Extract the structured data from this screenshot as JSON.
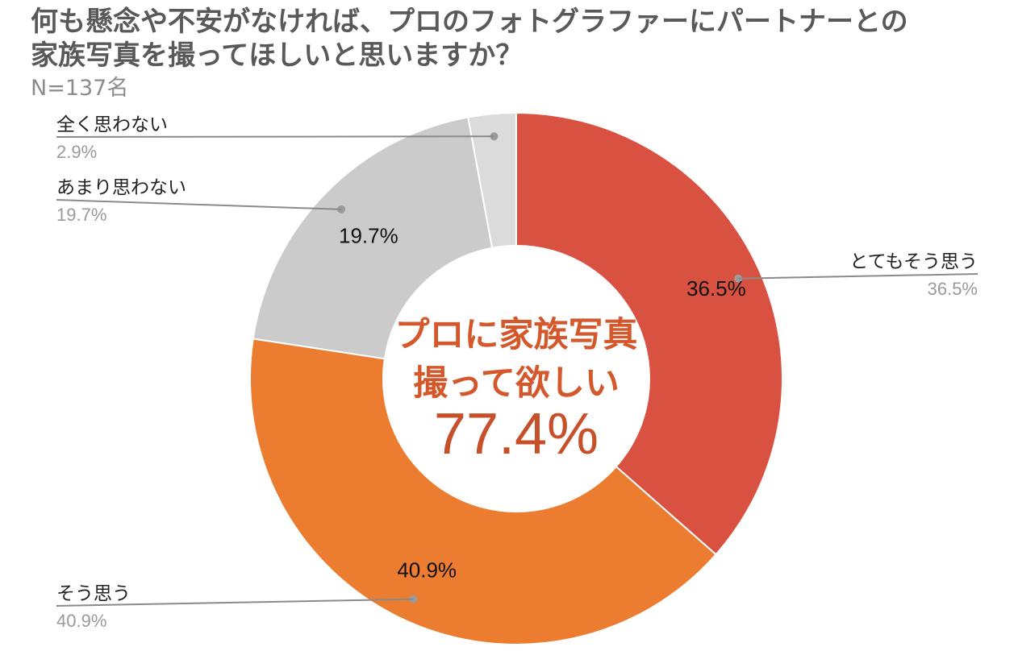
{
  "chart_data": {
    "type": "donut",
    "title_lines": [
      "何も懸念や不安がなければ、プロのフォトグラファーにパートナーとの",
      "家族写真を撮ってほしいと思いますか？"
    ],
    "subtitle": "N=137名",
    "categories": [
      "とてもそう思う",
      "そう思う",
      "あまり思わない",
      "全く思わない"
    ],
    "values": [
      36.5,
      40.9,
      19.7,
      2.9
    ],
    "value_labels": [
      "36.5%",
      "40.9%",
      "19.7%",
      "2.9%"
    ],
    "slice_labels": [
      "36.5%",
      "40.9%",
      "19.7%",
      ""
    ],
    "colors": [
      "#d95140",
      "#ec7c30",
      "#cbcbcb",
      "#dbdbdb"
    ],
    "start": "12 o'clock",
    "direction": "clockwise",
    "center_text_lines": [
      "プロに家族写真",
      "撮って欲しい"
    ],
    "center_value": "77.4%",
    "legend_placement": "callouts"
  }
}
